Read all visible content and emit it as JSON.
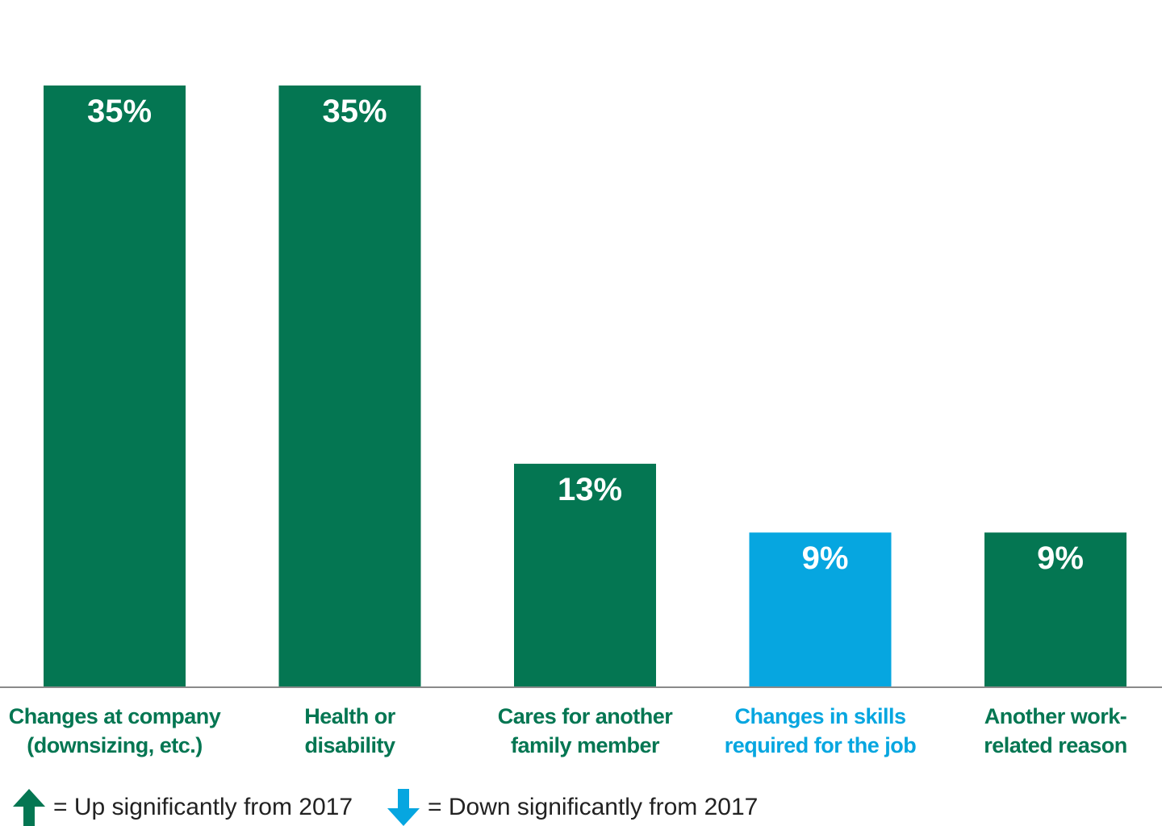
{
  "chart_data": {
    "type": "bar",
    "categories": [
      [
        "Changes at company",
        "(downsizing, etc.)"
      ],
      [
        "Health or",
        "disability"
      ],
      [
        "Cares for another",
        "family member"
      ],
      [
        "Changes in skills",
        "required for the job"
      ],
      [
        "Another work-",
        "related reason"
      ]
    ],
    "values": [
      35,
      35,
      13,
      9,
      9
    ],
    "value_labels": [
      "35%",
      "35%",
      "13%",
      "9%",
      "9%"
    ],
    "significance": [
      "none",
      "none",
      "none",
      "down",
      "none"
    ],
    "ylim": [
      0,
      35
    ],
    "grid": false,
    "colors": {
      "default": "#047652",
      "down": "#06A6E0",
      "up": "#047652"
    }
  },
  "legend": {
    "up_label": "= Up significantly from 2017",
    "down_label": "= Down significantly from 2017",
    "up_icon": "up-arrow-icon",
    "down_icon": "down-arrow-icon"
  }
}
